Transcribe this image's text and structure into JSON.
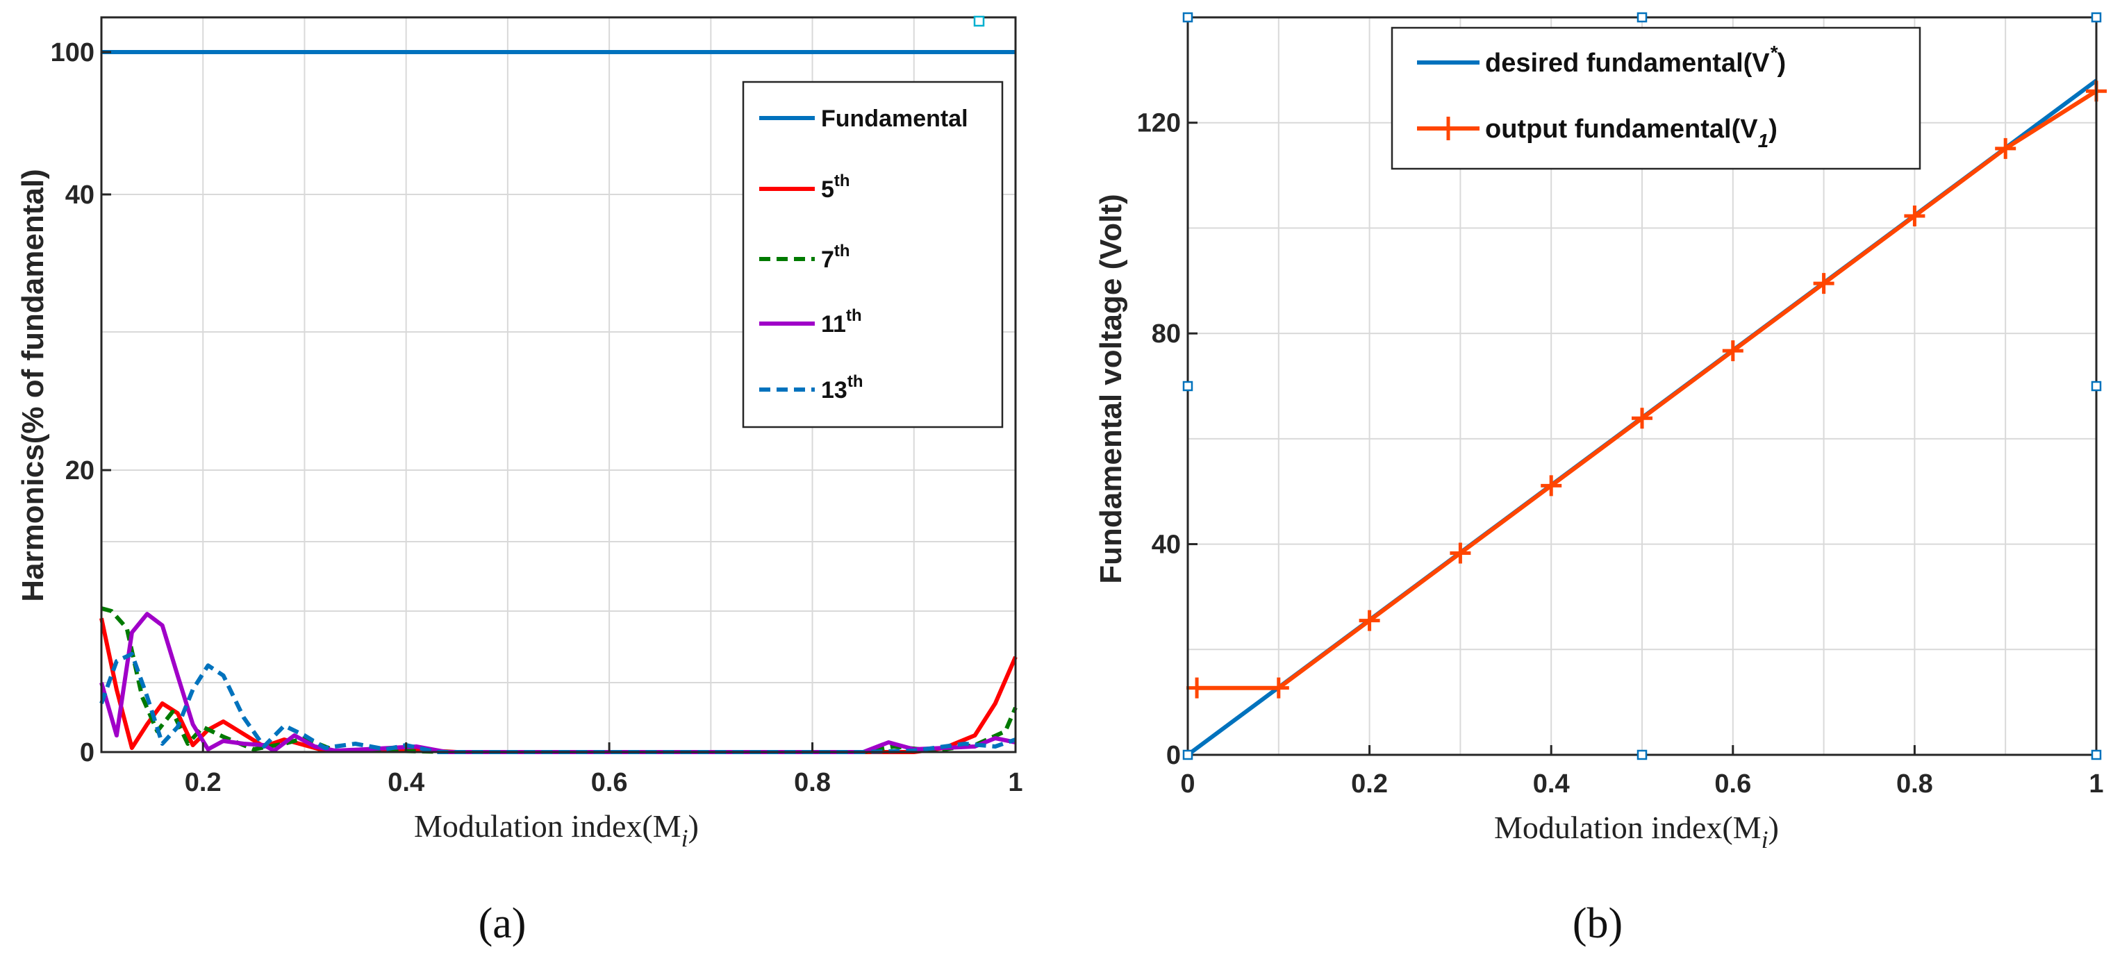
{
  "chart_data": [
    {
      "type": "line",
      "panel_label": "(a)",
      "xlabel": "Modulation index(M",
      "xlabel_sub": "i",
      "xlabel_close": ")",
      "ylabel": "Harmonics(% of fundamental)",
      "xlim": [
        0.1,
        1.0
      ],
      "xticks": [
        0.2,
        0.4,
        0.6,
        0.8,
        1
      ],
      "xtick_labels": [
        "0.2",
        "0.4",
        "0.6",
        "0.8",
        "1"
      ],
      "yticks": [
        0,
        20,
        40,
        100
      ],
      "ytick_labels": [
        "0",
        "20",
        "40",
        "100"
      ],
      "y_axis_note": "broken axis: 0-20 linear, then 40 and 100 compressed",
      "grid": true,
      "legend_position": "upper-right",
      "series": [
        {
          "name": "Fundamental",
          "sup": "",
          "color": "#0072BD",
          "dash": "solid",
          "x": [
            0.1,
            1.0
          ],
          "values": [
            100,
            100
          ]
        },
        {
          "name": "5",
          "sup": "th",
          "color": "#FF0000",
          "dash": "solid",
          "x": [
            0.1,
            0.115,
            0.13,
            0.145,
            0.16,
            0.175,
            0.19,
            0.205,
            0.22,
            0.24,
            0.26,
            0.28,
            0.3,
            0.32,
            0.35,
            0.4,
            0.45,
            0.85,
            0.9,
            0.93,
            0.96,
            0.98,
            1.0
          ],
          "values": [
            9.5,
            4.5,
            0.3,
            2.0,
            3.5,
            2.8,
            0.5,
            1.6,
            2.2,
            1.3,
            0.4,
            0.9,
            0.5,
            0.1,
            0.1,
            0.2,
            0.0,
            0.0,
            0.0,
            0.3,
            1.2,
            3.5,
            6.8
          ]
        },
        {
          "name": "7",
          "sup": "th",
          "color": "#007A00",
          "dash": "dashed",
          "x": [
            0.1,
            0.11,
            0.125,
            0.14,
            0.155,
            0.17,
            0.185,
            0.2,
            0.22,
            0.25,
            0.28,
            0.3,
            0.33,
            0.38,
            0.45,
            0.85,
            0.88,
            0.92,
            0.96,
            0.99,
            1.0
          ],
          "values": [
            10.2,
            10.0,
            8.8,
            4.0,
            1.5,
            2.9,
            0.6,
            1.8,
            1.1,
            0.2,
            0.6,
            1.0,
            0.1,
            0.1,
            0.0,
            0.0,
            0.4,
            0.1,
            0.5,
            1.5,
            3.2
          ]
        },
        {
          "name": "11",
          "sup": "th",
          "color": "#A000C8",
          "dash": "solid",
          "x": [
            0.1,
            0.115,
            0.13,
            0.145,
            0.16,
            0.175,
            0.19,
            0.205,
            0.22,
            0.24,
            0.26,
            0.27,
            0.29,
            0.31,
            0.33,
            0.36,
            0.41,
            0.44,
            0.85,
            0.875,
            0.9,
            0.93,
            0.96,
            0.98,
            1.0
          ],
          "values": [
            5.0,
            1.2,
            8.5,
            9.8,
            9.0,
            5.5,
            2.0,
            0.2,
            0.8,
            0.6,
            0.5,
            0.1,
            1.2,
            0.4,
            0.1,
            0.2,
            0.4,
            0.0,
            0.0,
            0.7,
            0.2,
            0.3,
            0.4,
            1.0,
            0.7
          ]
        },
        {
          "name": "13",
          "sup": "th",
          "color": "#0072BD",
          "dash": "dashed",
          "x": [
            0.1,
            0.115,
            0.13,
            0.145,
            0.16,
            0.175,
            0.19,
            0.205,
            0.22,
            0.24,
            0.26,
            0.28,
            0.3,
            0.32,
            0.35,
            0.38,
            0.4,
            0.43,
            0.85,
            0.9,
            0.95,
            0.98,
            1.0
          ],
          "values": [
            3.5,
            6.5,
            7.0,
            4.0,
            0.6,
            1.8,
            4.5,
            6.2,
            5.5,
            2.5,
            0.4,
            1.9,
            1.2,
            0.3,
            0.6,
            0.2,
            0.5,
            0.0,
            0.0,
            0.1,
            0.6,
            0.4,
            0.9
          ]
        }
      ]
    },
    {
      "type": "line",
      "panel_label": "(b)",
      "xlabel": "Modulation index(M",
      "xlabel_sub": "i",
      "xlabel_close": ")",
      "ylabel": "Fundamental voltage (Volt)",
      "xlim": [
        0,
        1
      ],
      "ylim": [
        0,
        140
      ],
      "xticks": [
        0,
        0.2,
        0.4,
        0.6,
        0.8,
        1
      ],
      "xtick_labels": [
        "0",
        "0.2",
        "0.4",
        "0.6",
        "0.8",
        "1"
      ],
      "yticks": [
        0,
        40,
        80,
        120
      ],
      "ytick_labels": [
        "0",
        "40",
        "80",
        "120"
      ],
      "grid": true,
      "legend_position": "upper-center",
      "series": [
        {
          "name": "desired fundamental(V",
          "var_sup": "*",
          "close": ")",
          "color": "#0072BD",
          "marker": "none",
          "x": [
            0,
            1
          ],
          "values": [
            0,
            128
          ]
        },
        {
          "name": "output fundamental(V",
          "var_sub": "1",
          "close": ")",
          "color": "#FF4500",
          "marker": "+",
          "x": [
            0.01,
            0.1,
            0.2,
            0.3,
            0.4,
            0.5,
            0.6,
            0.7,
            0.8,
            0.9,
            1.0
          ],
          "values": [
            12.7,
            12.7,
            25.5,
            38.3,
            51.1,
            63.9,
            76.7,
            89.5,
            102.3,
            115.1,
            126.0
          ]
        }
      ]
    }
  ]
}
